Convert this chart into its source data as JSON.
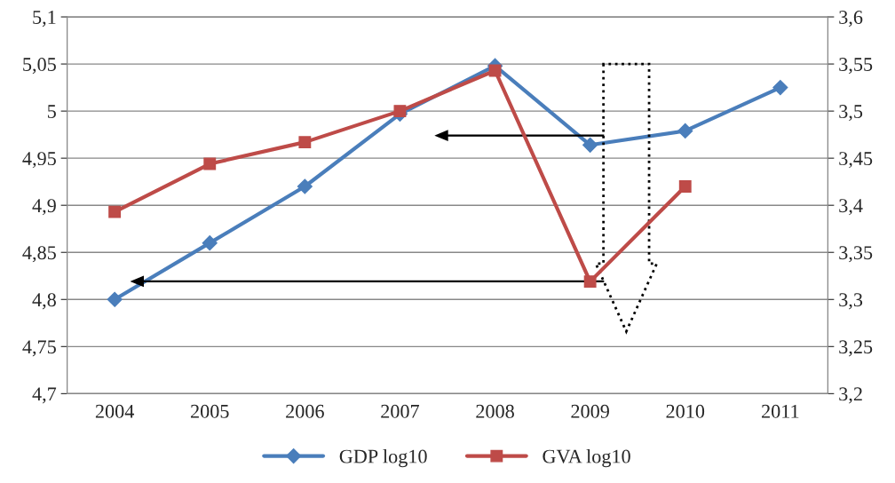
{
  "chart_data": {
    "type": "line",
    "categories": [
      "2004",
      "2005",
      "2006",
      "2007",
      "2008",
      "2009",
      "2010",
      "2011"
    ],
    "series": [
      {
        "name": "GDP log10",
        "color": "#4a7ebb",
        "marker": "diamond",
        "values": [
          4.8,
          4.86,
          4.92,
          4.997,
          5.048,
          4.964,
          4.979,
          5.025
        ]
      },
      {
        "name": "GVA log10",
        "color": "#be4b48",
        "marker": "square",
        "axis": "y2",
        "values": [
          3.393,
          3.444,
          3.467,
          3.5,
          3.543,
          3.319,
          3.42,
          null
        ]
      }
    ],
    "ylim": [
      4.7,
      5.1
    ],
    "yticks": [
      {
        "value": 4.7,
        "label": "4,7"
      },
      {
        "value": 4.75,
        "label": "4,75"
      },
      {
        "value": 4.8,
        "label": "4,8"
      },
      {
        "value": 4.85,
        "label": "4,85"
      },
      {
        "value": 4.9,
        "label": "4,9"
      },
      {
        "value": 4.95,
        "label": "4,95"
      },
      {
        "value": 5,
        "label": "5"
      },
      {
        "value": 5.05,
        "label": "5,05"
      },
      {
        "value": 5.1,
        "label": "5,1"
      }
    ],
    "y2lim": [
      3.2,
      3.6
    ],
    "y2ticks": [
      {
        "value": 3.2,
        "label": "3,2"
      },
      {
        "value": 3.25,
        "label": "3,25"
      },
      {
        "value": 3.3,
        "label": "3,3"
      },
      {
        "value": 3.35,
        "label": "3,35"
      },
      {
        "value": 3.4,
        "label": "3,4"
      },
      {
        "value": 3.45,
        "label": "3,45"
      },
      {
        "value": 3.5,
        "label": "3,5"
      },
      {
        "value": 3.55,
        "label": "3,55"
      },
      {
        "value": 3.6,
        "label": "3,6"
      }
    ],
    "grid": "y",
    "legend": "bottom",
    "line_style": "solid"
  }
}
